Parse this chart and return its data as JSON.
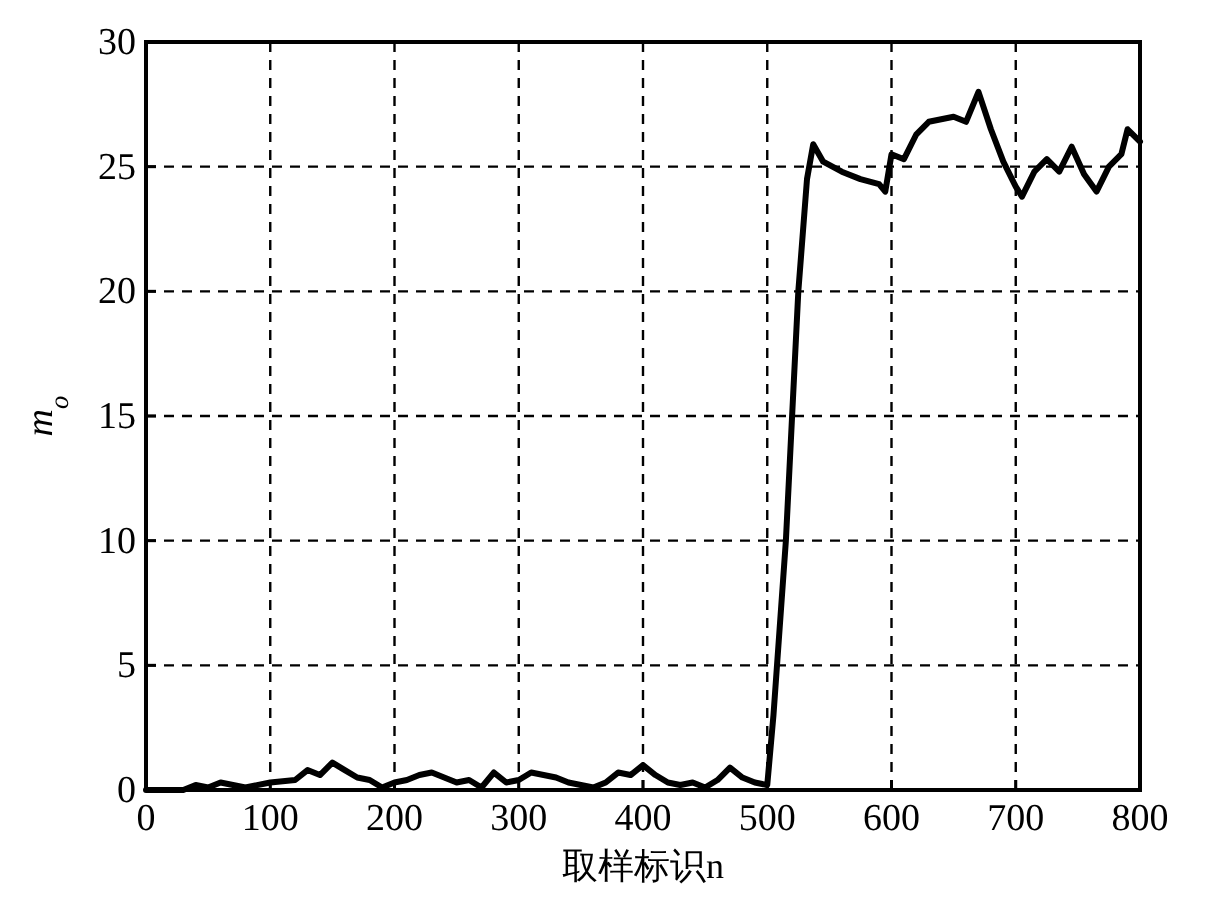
{
  "chart_data": {
    "type": "line",
    "xlabel": "取样标识n",
    "ylabel": "m$_{o}$",
    "xlim": [
      0,
      800
    ],
    "xticks": [
      0,
      100,
      200,
      300,
      400,
      500,
      600,
      700,
      800
    ],
    "ylim": [
      0,
      30
    ],
    "yticks": [
      0,
      5,
      10,
      15,
      20,
      25,
      30
    ],
    "grid": true,
    "series": [
      {
        "color": "#000000",
        "x": [
          0,
          30,
          40,
          50,
          60,
          80,
          100,
          120,
          130,
          140,
          150,
          160,
          170,
          180,
          190,
          200,
          210,
          220,
          230,
          240,
          250,
          260,
          270,
          280,
          290,
          300,
          310,
          320,
          330,
          340,
          350,
          360,
          370,
          380,
          390,
          400,
          410,
          420,
          430,
          440,
          450,
          460,
          470,
          480,
          490,
          500,
          505,
          515,
          525,
          532,
          537,
          545,
          560,
          575,
          590,
          595,
          600,
          610,
          620,
          630,
          650,
          660,
          670,
          680,
          690,
          700,
          705,
          715,
          725,
          735,
          745,
          755,
          765,
          775,
          785,
          790,
          800
        ],
        "values": [
          0,
          0,
          0.2,
          0.1,
          0.3,
          0.1,
          0.3,
          0.4,
          0.8,
          0.6,
          1.1,
          0.8,
          0.5,
          0.4,
          0.1,
          0.3,
          0.4,
          0.6,
          0.7,
          0.5,
          0.3,
          0.4,
          0.1,
          0.7,
          0.3,
          0.4,
          0.7,
          0.6,
          0.5,
          0.3,
          0.2,
          0.1,
          0.3,
          0.7,
          0.6,
          1.0,
          0.6,
          0.3,
          0.2,
          0.3,
          0.1,
          0.4,
          0.9,
          0.5,
          0.3,
          0.2,
          3,
          10,
          20,
          24.5,
          25.9,
          25.2,
          24.8,
          24.5,
          24.3,
          24,
          25.5,
          25.3,
          26.3,
          26.8,
          27,
          26.8,
          28,
          26.5,
          25.2,
          24.2,
          23.8,
          24.8,
          25.3,
          24.8,
          25.8,
          24.7,
          24,
          25,
          25.5,
          26.5,
          26
        ]
      }
    ]
  }
}
